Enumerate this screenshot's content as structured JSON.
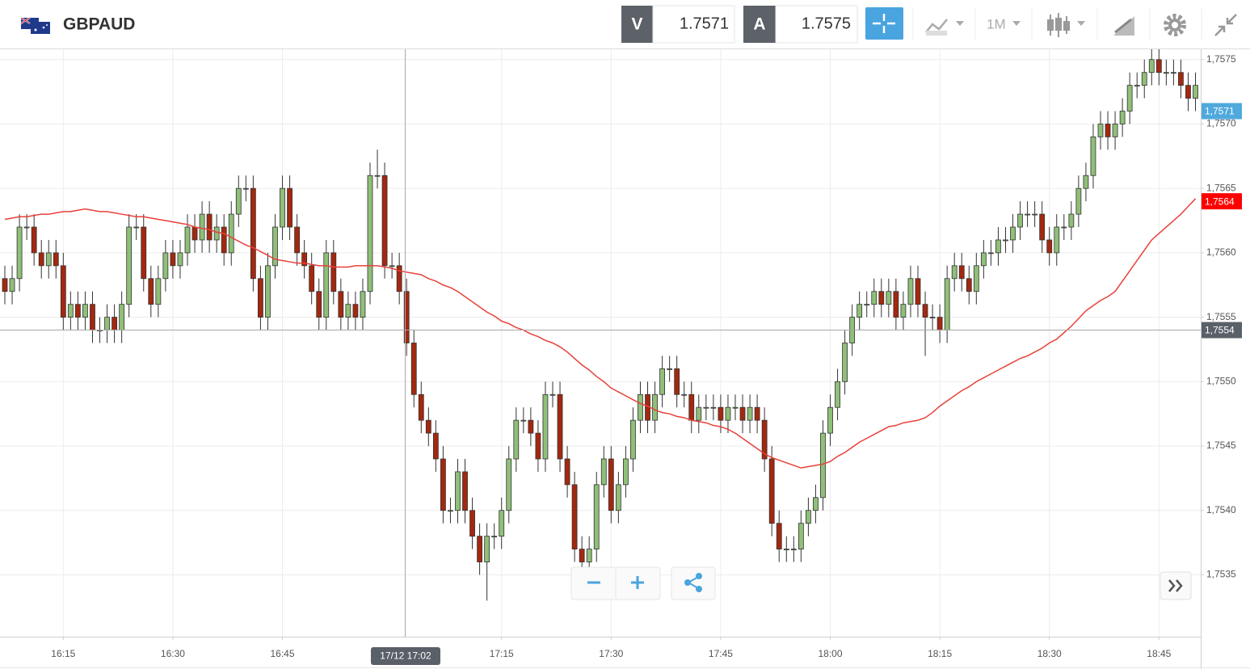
{
  "header": {
    "symbol": "GBPAUD",
    "sell_label": "V",
    "sell_price": "1.7571",
    "buy_label": "A",
    "buy_price": "1.7575",
    "timeframe": "1M"
  },
  "chart_data": {
    "type": "candlestick",
    "categories": [
      null,
      null,
      null,
      null,
      null,
      null,
      null,
      null,
      "16:15",
      null,
      null,
      null,
      null,
      null,
      null,
      null,
      null,
      null,
      null,
      null,
      null,
      null,
      null,
      "16:30",
      null,
      null,
      null,
      null,
      null,
      null,
      null,
      null,
      null,
      null,
      null,
      null,
      null,
      null,
      "16:45",
      null,
      null,
      null,
      null,
      null,
      null,
      null,
      null,
      null,
      null,
      null,
      null,
      null,
      null,
      null,
      null,
      null,
      null,
      null,
      null,
      null,
      null,
      null,
      null,
      null,
      null,
      null,
      null,
      null,
      "17:15",
      null,
      null,
      null,
      null,
      null,
      null,
      null,
      null,
      null,
      null,
      null,
      null,
      null,
      null,
      "17:30",
      null,
      null,
      null,
      null,
      null,
      null,
      null,
      null,
      null,
      null,
      null,
      null,
      null,
      null,
      "17:45",
      null,
      null,
      null,
      null,
      null,
      null,
      null,
      null,
      null,
      null,
      null,
      null,
      null,
      null,
      "18:00",
      null,
      null,
      null,
      null,
      null,
      null,
      null,
      null,
      null,
      null,
      null,
      null,
      null,
      null,
      "18:15",
      null,
      null,
      null,
      null,
      null,
      null,
      null,
      null,
      null,
      null,
      null,
      null,
      null,
      null,
      "18:30",
      null,
      null,
      null,
      null,
      null,
      null,
      null,
      null,
      null,
      null,
      null,
      null,
      null,
      null,
      "18:45",
      null,
      null,
      null,
      null,
      null
    ],
    "open": [
      1.7558,
      1.7557,
      1.7558,
      1.7562,
      1.7562,
      1.756,
      1.7559,
      1.756,
      1.7559,
      1.7555,
      1.7556,
      1.7555,
      1.7556,
      1.7554,
      1.7554,
      1.7555,
      1.7554,
      1.7556,
      1.7562,
      1.7562,
      1.7558,
      1.7556,
      1.7558,
      1.756,
      1.7559,
      1.756,
      1.7562,
      1.7561,
      1.7563,
      1.7561,
      1.7562,
      1.756,
      1.7563,
      1.7565,
      1.7565,
      1.7558,
      1.7555,
      1.7559,
      1.7562,
      1.7565,
      1.7562,
      1.756,
      1.7559,
      1.7557,
      1.7555,
      1.756,
      1.7557,
      1.7555,
      1.7556,
      1.7555,
      1.7557,
      1.7566,
      1.7566,
      1.7559,
      1.7559,
      1.7557,
      1.7553,
      1.7549,
      1.7547,
      1.7546,
      1.7544,
      1.754,
      1.754,
      1.7543,
      1.754,
      1.7538,
      1.7536,
      1.7538,
      1.7538,
      1.754,
      1.7544,
      1.7547,
      1.7547,
      1.7546,
      1.7544,
      1.7549,
      1.7549,
      1.7544,
      1.7542,
      1.7537,
      1.7536,
      1.7537,
      1.7542,
      1.7544,
      1.754,
      1.7542,
      1.7544,
      1.7547,
      1.7549,
      1.7547,
      1.7549,
      1.7551,
      1.7551,
      1.7549,
      1.7549,
      1.7547,
      1.7548,
      1.7548,
      1.7548,
      1.7547,
      1.7548,
      1.7548,
      1.7547,
      1.7548,
      1.7547,
      1.7544,
      1.7539,
      1.7537,
      1.7537,
      1.7537,
      1.7539,
      1.754,
      1.7541,
      1.7546,
      1.7548,
      1.755,
      1.7553,
      1.7555,
      1.7556,
      1.7556,
      1.7557,
      1.7556,
      1.7557,
      1.7555,
      1.7556,
      1.7558,
      1.7556,
      1.7555,
      1.7555,
      1.7554,
      1.7558,
      1.7559,
      1.7558,
      1.7557,
      1.7559,
      1.756,
      1.756,
      1.7561,
      1.7561,
      1.7562,
      1.7563,
      1.7563,
      1.7563,
      1.7561,
      1.756,
      1.7562,
      1.7562,
      1.7563,
      1.7565,
      1.7566,
      1.7569,
      1.757,
      1.7569,
      1.757,
      1.7571,
      1.7573,
      1.7573,
      1.7574,
      1.7575,
      1.7574,
      1.7574,
      1.7574,
      1.7573,
      1.7572
    ],
    "high": [
      1.7559,
      1.7559,
      1.7563,
      1.7563,
      1.7563,
      1.7561,
      1.7561,
      1.7561,
      1.756,
      1.7557,
      1.7557,
      1.7557,
      1.7557,
      1.7555,
      1.7556,
      1.7556,
      1.7557,
      1.7563,
      1.7563,
      1.7563,
      1.7559,
      1.7559,
      1.7561,
      1.7561,
      1.7561,
      1.7563,
      1.7563,
      1.7564,
      1.7564,
      1.7563,
      1.7563,
      1.7564,
      1.7566,
      1.7566,
      1.7566,
      1.7559,
      1.756,
      1.7563,
      1.7566,
      1.7566,
      1.7563,
      1.7561,
      1.756,
      1.7558,
      1.7561,
      1.7561,
      1.7558,
      1.7557,
      1.7557,
      1.7558,
      1.7567,
      1.7568,
      1.7567,
      1.756,
      1.756,
      1.7558,
      1.7554,
      1.755,
      1.7548,
      1.7547,
      1.7545,
      1.7541,
      1.7544,
      1.7544,
      1.7541,
      1.7539,
      1.7539,
      1.7539,
      1.7541,
      1.7545,
      1.7548,
      1.7548,
      1.7548,
      1.7547,
      1.755,
      1.755,
      1.755,
      1.7545,
      1.7543,
      1.7538,
      1.7538,
      1.7543,
      1.7545,
      1.7545,
      1.7543,
      1.7545,
      1.7548,
      1.755,
      1.755,
      1.755,
      1.7552,
      1.7552,
      1.7552,
      1.755,
      1.755,
      1.7549,
      1.7549,
      1.7549,
      1.7549,
      1.7549,
      1.7549,
      1.7549,
      1.7549,
      1.7549,
      1.7548,
      1.7545,
      1.754,
      1.7538,
      1.7538,
      1.754,
      1.7541,
      1.7542,
      1.7547,
      1.7549,
      1.7551,
      1.7554,
      1.7556,
      1.7557,
      1.7557,
      1.7558,
      1.7558,
      1.7558,
      1.7558,
      1.7557,
      1.7559,
      1.7559,
      1.7557,
      1.7556,
      1.7556,
      1.7559,
      1.756,
      1.756,
      1.7559,
      1.756,
      1.7561,
      1.7561,
      1.7562,
      1.7562,
      1.7563,
      1.7564,
      1.7564,
      1.7564,
      1.7564,
      1.7562,
      1.7563,
      1.7563,
      1.7564,
      1.7566,
      1.7567,
      1.757,
      1.7571,
      1.7571,
      1.7571,
      1.7572,
      1.7574,
      1.7574,
      1.7575,
      1.7576,
      1.7576,
      1.7575,
      1.7575,
      1.7575,
      1.7574,
      1.7574
    ],
    "low": [
      1.7556,
      1.7556,
      1.7557,
      1.7561,
      1.7559,
      1.7558,
      1.7558,
      1.7558,
      1.7554,
      1.7554,
      1.7554,
      1.7554,
      1.7553,
      1.7553,
      1.7553,
      1.7553,
      1.7553,
      1.7555,
      1.7561,
      1.7557,
      1.7555,
      1.7555,
      1.7557,
      1.7558,
      1.7558,
      1.7559,
      1.756,
      1.756,
      1.756,
      1.756,
      1.7559,
      1.7559,
      1.7562,
      1.7564,
      1.7557,
      1.7554,
      1.7554,
      1.7558,
      1.7561,
      1.7561,
      1.7559,
      1.7558,
      1.7556,
      1.7554,
      1.7554,
      1.7556,
      1.7554,
      1.7554,
      1.7554,
      1.7554,
      1.7556,
      1.7565,
      1.7558,
      1.7558,
      1.7556,
      1.7552,
      1.7548,
      1.7546,
      1.7545,
      1.7543,
      1.7539,
      1.7539,
      1.7539,
      1.7539,
      1.7537,
      1.7535,
      1.7533,
      1.7537,
      1.7537,
      1.7539,
      1.7543,
      1.7546,
      1.7545,
      1.7543,
      1.7543,
      1.7548,
      1.7543,
      1.7541,
      1.7536,
      1.7535,
      1.7535,
      1.7536,
      1.7541,
      1.7539,
      1.7539,
      1.7541,
      1.7543,
      1.7546,
      1.7546,
      1.7546,
      1.7548,
      1.755,
      1.7548,
      1.7548,
      1.7546,
      1.7546,
      1.7547,
      1.7547,
      1.7546,
      1.7546,
      1.7547,
      1.7546,
      1.7546,
      1.7546,
      1.7543,
      1.7538,
      1.7536,
      1.7536,
      1.7536,
      1.7536,
      1.7538,
      1.7539,
      1.754,
      1.7545,
      1.7547,
      1.7549,
      1.7552,
      1.7554,
      1.7555,
      1.7555,
      1.7555,
      1.7555,
      1.7554,
      1.7554,
      1.7555,
      1.7555,
      1.7552,
      1.7554,
      1.7553,
      1.7553,
      1.7557,
      1.7557,
      1.7556,
      1.7556,
      1.7558,
      1.7559,
      1.7559,
      1.756,
      1.756,
      1.7561,
      1.7562,
      1.7562,
      1.756,
      1.7559,
      1.7559,
      1.7561,
      1.7561,
      1.7562,
      1.7564,
      1.7565,
      1.7568,
      1.7568,
      1.7568,
      1.7569,
      1.757,
      1.7572,
      1.7572,
      1.7573,
      1.7573,
      1.7573,
      1.7573,
      1.7572,
      1.7571,
      1.7571
    ],
    "close": [
      1.7557,
      1.7558,
      1.7562,
      1.7562,
      1.756,
      1.7559,
      1.756,
      1.7559,
      1.7555,
      1.7556,
      1.7555,
      1.7556,
      1.7554,
      1.7554,
      1.7555,
      1.7554,
      1.7556,
      1.7562,
      1.7562,
      1.7558,
      1.7556,
      1.7558,
      1.756,
      1.7559,
      1.756,
      1.7562,
      1.7561,
      1.7563,
      1.7561,
      1.7562,
      1.756,
      1.7563,
      1.7565,
      1.7565,
      1.7558,
      1.7555,
      1.7559,
      1.7562,
      1.7565,
      1.7562,
      1.756,
      1.7559,
      1.7557,
      1.7555,
      1.756,
      1.7557,
      1.7555,
      1.7556,
      1.7555,
      1.7557,
      1.7566,
      1.7566,
      1.7559,
      1.7559,
      1.7557,
      1.7553,
      1.7549,
      1.7547,
      1.7546,
      1.7544,
      1.754,
      1.754,
      1.7543,
      1.754,
      1.7538,
      1.7536,
      1.7538,
      1.7538,
      1.754,
      1.7544,
      1.7547,
      1.7547,
      1.7546,
      1.7544,
      1.7549,
      1.7549,
      1.7544,
      1.7542,
      1.7537,
      1.7536,
      1.7537,
      1.7542,
      1.7544,
      1.754,
      1.7542,
      1.7544,
      1.7547,
      1.7549,
      1.7547,
      1.7549,
      1.7551,
      1.7551,
      1.7549,
      1.7549,
      1.7547,
      1.7548,
      1.7548,
      1.7548,
      1.7547,
      1.7548,
      1.7548,
      1.7547,
      1.7548,
      1.7547,
      1.7544,
      1.7539,
      1.7537,
      1.7537,
      1.7537,
      1.7539,
      1.754,
      1.7541,
      1.7546,
      1.7548,
      1.755,
      1.7553,
      1.7555,
      1.7556,
      1.7556,
      1.7557,
      1.7556,
      1.7557,
      1.7555,
      1.7556,
      1.7558,
      1.7556,
      1.7555,
      1.7555,
      1.7554,
      1.7558,
      1.7559,
      1.7558,
      1.7557,
      1.7559,
      1.756,
      1.756,
      1.7561,
      1.7561,
      1.7562,
      1.7563,
      1.7563,
      1.7563,
      1.7561,
      1.756,
      1.7562,
      1.7562,
      1.7563,
      1.7565,
      1.7566,
      1.7569,
      1.757,
      1.7569,
      1.757,
      1.7571,
      1.7573,
      1.7573,
      1.7574,
      1.7575,
      1.7574,
      1.7574,
      1.7574,
      1.7573,
      1.7572,
      1.7573
    ],
    "up_color": "#8fbf78",
    "down_color": "#a3280f",
    "wick_color": "#333333",
    "moving_average": {
      "color": "#e8403a",
      "values": [
        1.75626,
        1.75627,
        1.75628,
        1.75628,
        1.75629,
        1.7563,
        1.7563,
        1.75631,
        1.75632,
        1.75632,
        1.75633,
        1.75634,
        1.75633,
        1.75632,
        1.75632,
        1.75631,
        1.7563,
        1.75629,
        1.75628,
        1.75628,
        1.75627,
        1.75626,
        1.75625,
        1.75624,
        1.75623,
        1.75622,
        1.7562,
        1.75619,
        1.75618,
        1.75616,
        1.75615,
        1.75612,
        1.75609,
        1.75606,
        1.75604,
        1.75601,
        1.75598,
        1.75595,
        1.75594,
        1.75593,
        1.75592,
        1.75592,
        1.75591,
        1.7559,
        1.7559,
        1.75589,
        1.75589,
        1.75589,
        1.7559,
        1.7559,
        1.7559,
        1.7559,
        1.75589,
        1.75588,
        1.75586,
        1.75585,
        1.75584,
        1.75583,
        1.7558,
        1.75578,
        1.75575,
        1.75573,
        1.7557,
        1.75566,
        1.75562,
        1.75558,
        1.75554,
        1.75551,
        1.75547,
        1.75545,
        1.75542,
        1.7554,
        1.75537,
        1.75535,
        1.75532,
        1.7553,
        1.75527,
        1.75523,
        1.75518,
        1.75513,
        1.75509,
        1.75504,
        1.755,
        1.75495,
        1.75492,
        1.75489,
        1.75486,
        1.75483,
        1.75481,
        1.75478,
        1.75476,
        1.75475,
        1.75473,
        1.75472,
        1.7547,
        1.75469,
        1.75468,
        1.75466,
        1.75465,
        1.75463,
        1.7546,
        1.75456,
        1.75452,
        1.75448,
        1.75444,
        1.75441,
        1.75439,
        1.75437,
        1.75435,
        1.75433,
        1.75434,
        1.75435,
        1.75436,
        1.75438,
        1.75442,
        1.75445,
        1.75449,
        1.75453,
        1.75456,
        1.75459,
        1.75462,
        1.75465,
        1.75466,
        1.75468,
        1.75469,
        1.7547,
        1.75472,
        1.75476,
        1.75481,
        1.75485,
        1.75489,
        1.75493,
        1.75496,
        1.755,
        1.75503,
        1.75506,
        1.75509,
        1.75512,
        1.75515,
        1.75518,
        1.7552,
        1.75523,
        1.75526,
        1.7553,
        1.75533,
        1.75538,
        1.75543,
        1.75549,
        1.75555,
        1.75559,
        1.75563,
        1.75566,
        1.7557,
        1.75578,
        1.75586,
        1.75594,
        1.75602,
        1.7561,
        1.75615,
        1.7562,
        1.75625,
        1.7563,
        1.75636,
        1.75642
      ]
    },
    "ylim": [
      1.75302,
      1.75758
    ],
    "yticks": [
      {
        "value": 1.7535,
        "label": "1,7535"
      },
      {
        "value": 1.754,
        "label": "1,7540"
      },
      {
        "value": 1.7545,
        "label": "1,7545"
      },
      {
        "value": 1.755,
        "label": "1,7550"
      },
      {
        "value": 1.7555,
        "label": "1,7555"
      },
      {
        "value": 1.756,
        "label": "1,7560"
      },
      {
        "value": 1.7565,
        "label": "1,7565"
      },
      {
        "value": 1.757,
        "label": "1,7570"
      },
      {
        "value": 1.7575,
        "label": "1,7575"
      }
    ],
    "grid": true,
    "price_tags": [
      {
        "value": 1.7571,
        "label": "1,7571",
        "color": "#4fa9dd"
      },
      {
        "value": 1.7564,
        "label": "1,7564",
        "color": "#ff0000"
      }
    ],
    "crosshair": {
      "label": "17/12 17:02",
      "value": 1.7554,
      "value_label": "1,7554"
    }
  }
}
